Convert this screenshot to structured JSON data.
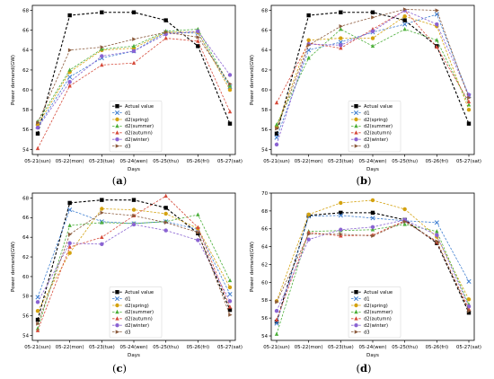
{
  "chart_data": [
    {
      "panel": "(a)",
      "type": "line",
      "xlabel": "Days",
      "ylabel": "Power demand(GW)",
      "categories": [
        "05-21(sun)",
        "05-22(mon)",
        "05-23(tue)",
        "05-24(wen)",
        "05-25(thu)",
        "05-26(fri)",
        "05-27(sat)"
      ],
      "ylim": [
        53.5,
        68.5
      ],
      "yticks": [
        54,
        56,
        58,
        60,
        62,
        64,
        66,
        68
      ],
      "legend_position": "lower center",
      "series": [
        {
          "name": "Actual value",
          "values": [
            55.6,
            67.5,
            67.8,
            67.8,
            67.0,
            64.4,
            56.6
          ]
        },
        {
          "name": "d1",
          "values": [
            56.3,
            61.3,
            63.2,
            63.9,
            65.8,
            65.7,
            60.3
          ]
        },
        {
          "name": "d2(spring)",
          "values": [
            56.5,
            61.8,
            64.0,
            64.2,
            65.8,
            65.8,
            60.0
          ]
        },
        {
          "name": "d2(summer)",
          "values": [
            56.8,
            62.0,
            64.1,
            64.4,
            65.9,
            66.1,
            60.4
          ]
        },
        {
          "name": "d2(autumn)",
          "values": [
            54.1,
            60.4,
            62.5,
            62.7,
            65.2,
            64.9,
            57.8
          ]
        },
        {
          "name": "d2(winter)",
          "values": [
            56.2,
            60.8,
            63.4,
            63.9,
            65.6,
            65.9,
            61.5
          ]
        },
        {
          "name": "d3",
          "values": [
            56.7,
            64.0,
            64.3,
            65.1,
            65.8,
            65.3,
            60.6
          ]
        }
      ]
    },
    {
      "panel": "(b)",
      "type": "line",
      "xlabel": "Days",
      "ylabel": "Power demand(GW)",
      "categories": [
        "05-21(sun)",
        "05-22(mon)",
        "05-23(tue)",
        "05-24(wen)",
        "05-25(thu)",
        "05-26(fri)",
        "05-27(sat)"
      ],
      "ylim": [
        53.5,
        68.5
      ],
      "yticks": [
        54,
        56,
        58,
        60,
        62,
        64,
        66,
        68
      ],
      "legend_position": "lower center",
      "series": [
        {
          "name": "Actual value",
          "values": [
            55.6,
            67.5,
            67.8,
            67.8,
            67.0,
            64.4,
            56.6
          ]
        },
        {
          "name": "d1",
          "values": [
            55.2,
            64.0,
            64.8,
            65.8,
            66.6,
            67.6,
            59.4
          ]
        },
        {
          "name": "d2(spring)",
          "values": [
            56.3,
            65.0,
            65.2,
            65.2,
            67.4,
            66.4,
            58.0
          ]
        },
        {
          "name": "d2(summer)",
          "values": [
            56.5,
            63.2,
            66.1,
            64.4,
            66.1,
            65.0,
            58.5
          ]
        },
        {
          "name": "d2(autumn)",
          "values": [
            58.7,
            64.7,
            64.2,
            66.1,
            68.0,
            64.3,
            58.8
          ]
        },
        {
          "name": "d2(winter)",
          "values": [
            54.5,
            64.6,
            64.5,
            65.9,
            68.0,
            66.6,
            59.5
          ]
        },
        {
          "name": "d3",
          "values": [
            56.1,
            64.5,
            66.4,
            67.3,
            68.1,
            68.0,
            59.2
          ]
        }
      ]
    },
    {
      "panel": "(c)",
      "type": "line",
      "xlabel": "Days",
      "ylabel": "Power demand(GW)",
      "categories": [
        "05-21(sun)",
        "05-22(mon)",
        "05-23(tue)",
        "05-24(wen)",
        "05-25(thu)",
        "05-26(fri)",
        "05-27(sat)"
      ],
      "ylim": [
        53.5,
        68.5
      ],
      "yticks": [
        54,
        56,
        58,
        60,
        62,
        64,
        66,
        68
      ],
      "legend_position": "lower center",
      "series": [
        {
          "name": "Actual value",
          "values": [
            55.6,
            67.5,
            67.8,
            67.8,
            67.0,
            64.4,
            56.6
          ]
        },
        {
          "name": "d1",
          "values": [
            57.9,
            66.8,
            65.6,
            65.4,
            65.6,
            64.8,
            58.2
          ]
        },
        {
          "name": "d2(spring)",
          "values": [
            56.5,
            62.4,
            66.9,
            66.8,
            66.4,
            64.9,
            58.9
          ]
        },
        {
          "name": "d2(summer)",
          "values": [
            54.7,
            65.2,
            65.5,
            65.4,
            65.6,
            66.3,
            59.6
          ]
        },
        {
          "name": "d2(autumn)",
          "values": [
            54.5,
            63.0,
            64.0,
            66.2,
            68.2,
            65.0,
            56.9
          ]
        },
        {
          "name": "d2(winter)",
          "values": [
            57.4,
            63.4,
            63.3,
            65.3,
            64.7,
            63.7,
            57.5
          ]
        },
        {
          "name": "d3",
          "values": [
            55.2,
            64.3,
            66.5,
            66.2,
            65.5,
            64.5,
            56.1
          ]
        }
      ]
    },
    {
      "panel": "(d)",
      "type": "line",
      "xlabel": "Days",
      "ylabel": "Power demand(GW)",
      "categories": [
        "05-21(sun)",
        "05-22(mon)",
        "05-23(tue)",
        "05-24(wen)",
        "05-25(thu)",
        "05-26(fri)",
        "05-27(sat)"
      ],
      "ylim": [
        53.5,
        70.0
      ],
      "yticks": [
        54,
        56,
        58,
        60,
        62,
        64,
        66,
        68,
        70
      ],
      "legend_position": "lower center",
      "series": [
        {
          "name": "Actual value",
          "values": [
            55.6,
            67.5,
            67.8,
            67.8,
            67.0,
            64.4,
            56.6
          ]
        },
        {
          "name": "d1",
          "values": [
            55.4,
            67.4,
            67.5,
            67.2,
            66.9,
            66.7,
            60.1
          ]
        },
        {
          "name": "d2(spring)",
          "values": [
            57.9,
            67.6,
            68.9,
            69.2,
            68.2,
            65.1,
            58.1
          ]
        },
        {
          "name": "d2(summer)",
          "values": [
            54.2,
            65.7,
            65.8,
            65.9,
            66.5,
            65.7,
            57.5
          ]
        },
        {
          "name": "d2(autumn)",
          "values": [
            55.8,
            65.6,
            65.2,
            65.3,
            66.9,
            64.5,
            57.0
          ]
        },
        {
          "name": "d2(winter)",
          "values": [
            56.8,
            64.8,
            65.9,
            66.2,
            67.0,
            65.3,
            57.3
          ]
        },
        {
          "name": "d3",
          "values": [
            57.8,
            65.4,
            65.4,
            65.2,
            66.8,
            64.6,
            56.8
          ]
        }
      ]
    }
  ],
  "style": {
    "series_colors": [
      "#000000",
      "#3f7fd1",
      "#d4a20f",
      "#4caf3a",
      "#d64a3a",
      "#8a63d2",
      "#8b5a3c"
    ],
    "series_markers": [
      "square",
      "x",
      "circle",
      "triangle-up",
      "triangle-up",
      "circle",
      "triangle-right"
    ],
    "series_dash": [
      "dashed",
      "dashed",
      "dashed",
      "dashed",
      "dashed",
      "dashed",
      "dashed"
    ]
  }
}
